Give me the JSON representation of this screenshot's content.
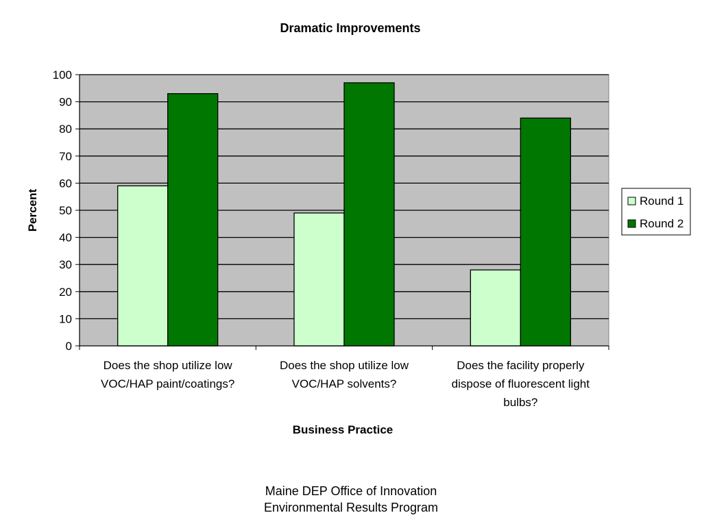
{
  "chart_data": {
    "type": "bar",
    "title": "Dramatic Improvements",
    "xlabel": "Business Practice",
    "ylabel": "Percent",
    "ylim": [
      0,
      100
    ],
    "yticks": [
      0,
      10,
      20,
      30,
      40,
      50,
      60,
      70,
      80,
      90,
      100
    ],
    "categories": [
      [
        "Does the shop utilize low",
        "VOC/HAP paint/coatings?"
      ],
      [
        "Does the shop utilize low",
        "VOC/HAP solvents?"
      ],
      [
        "Does the facility properly",
        "dispose of fluorescent light",
        "bulbs?"
      ]
    ],
    "series": [
      {
        "name": "Round 1",
        "color": "#ccffcc",
        "values": [
          59,
          49,
          28
        ]
      },
      {
        "name": "Round 2",
        "color": "#007700",
        "values": [
          93,
          97,
          84
        ]
      }
    ],
    "grid": true,
    "plot_background": "#c0c0c0",
    "legend_position": "right"
  },
  "footer": {
    "line1": "Maine DEP Office of Innovation",
    "line2": "Environmental Results Program"
  }
}
